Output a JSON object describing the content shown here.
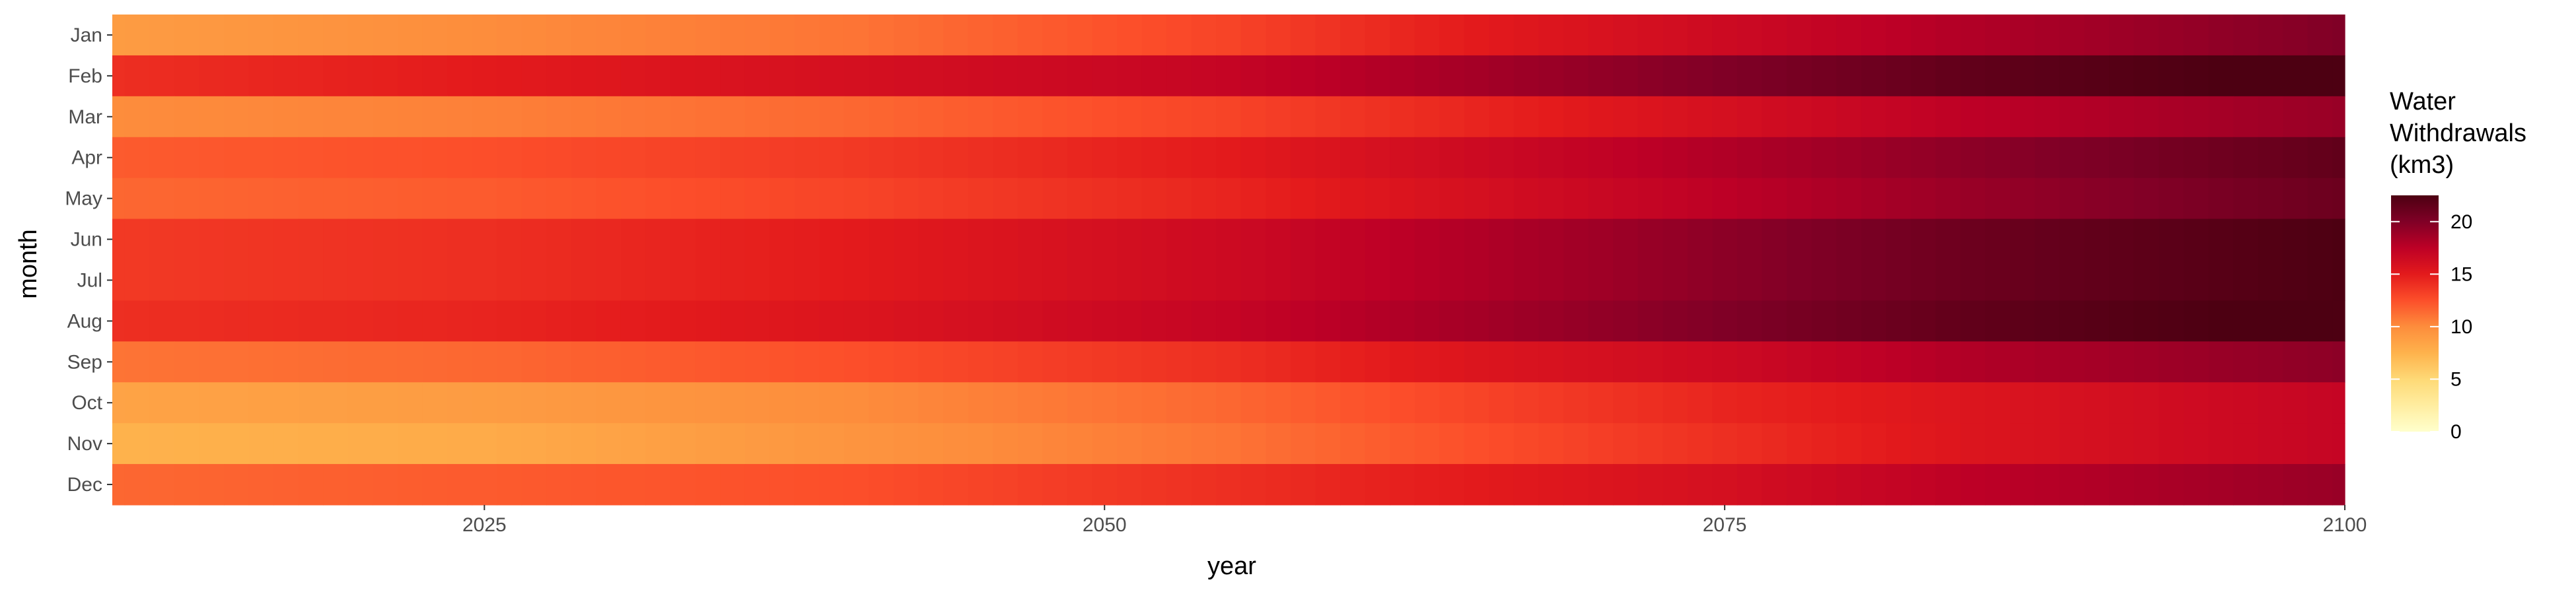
{
  "chart_data": {
    "type": "heatmap",
    "xlabel": "year",
    "ylabel": "month",
    "x_range": [
      2010,
      2100
    ],
    "x_ticks": [
      "2025",
      "2050",
      "2075",
      "2100"
    ],
    "x_tick_values": [
      2025,
      2050,
      2075,
      2100
    ],
    "months": [
      "Jan",
      "Feb",
      "Mar",
      "Apr",
      "May",
      "Jun",
      "Jul",
      "Aug",
      "Sep",
      "Oct",
      "Nov",
      "Dec"
    ],
    "anchor_years": [
      2010,
      2025,
      2040,
      2055,
      2065,
      2075,
      2085,
      2100
    ],
    "values": [
      [
        9.0,
        10.0,
        11.0,
        13.0,
        15.0,
        16.5,
        18.0,
        20.0
      ],
      [
        14.0,
        15.0,
        16.0,
        17.0,
        18.5,
        20.0,
        21.5,
        23.0
      ],
      [
        10.0,
        10.5,
        11.5,
        13.0,
        14.5,
        16.0,
        17.5,
        19.0
      ],
      [
        12.0,
        12.5,
        13.5,
        15.0,
        16.5,
        18.0,
        19.5,
        21.5
      ],
      [
        11.5,
        12.0,
        13.0,
        14.5,
        16.0,
        17.5,
        19.0,
        21.0
      ],
      [
        13.5,
        14.0,
        15.0,
        16.5,
        18.0,
        19.5,
        21.0,
        22.5
      ],
      [
        13.5,
        14.0,
        15.0,
        16.5,
        18.0,
        19.5,
        21.0,
        22.5
      ],
      [
        14.0,
        14.5,
        15.5,
        17.0,
        18.5,
        20.0,
        21.5,
        23.0
      ],
      [
        11.0,
        11.5,
        12.5,
        14.0,
        15.5,
        16.5,
        18.0,
        19.5
      ],
      [
        8.5,
        9.0,
        10.0,
        11.5,
        13.0,
        14.5,
        15.5,
        17.0
      ],
      [
        7.5,
        8.0,
        9.5,
        11.0,
        12.5,
        14.0,
        15.5,
        17.0
      ],
      [
        11.5,
        12.0,
        12.5,
        14.0,
        15.0,
        16.0,
        17.5,
        19.0
      ]
    ],
    "legend": {
      "title_lines": [
        "Water",
        "Withdrawals",
        "(km3)"
      ],
      "labels": [
        "0",
        "5",
        "10",
        "15",
        "20"
      ],
      "values": [
        0,
        5,
        10,
        15,
        20
      ],
      "range": [
        0,
        22.5
      ],
      "position": "right"
    },
    "colors": {
      "scale": [
        "#ffffcc",
        "#ffeda0",
        "#fed976",
        "#feb24c",
        "#fd8d3c",
        "#fc4e2a",
        "#e31a1c",
        "#bd0026",
        "#800026",
        "#4d0012"
      ],
      "tick_text": "#4d4d4d",
      "text": "#000000"
    },
    "grid": false
  }
}
